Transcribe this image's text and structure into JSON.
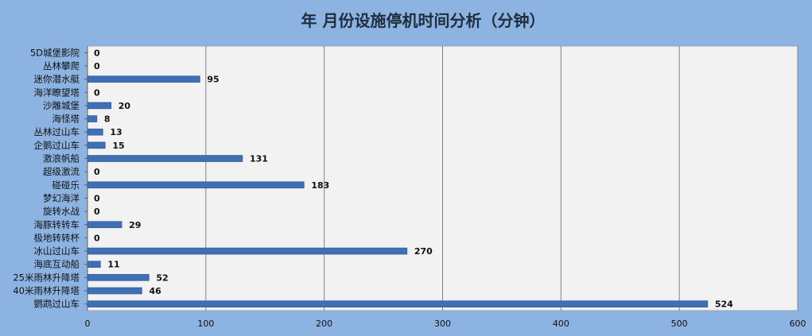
{
  "chart_data": {
    "type": "bar",
    "orientation": "horizontal",
    "title": "年  月份设施停机时间分析（分钟）",
    "xlabel": "",
    "ylabel": "",
    "xlim": [
      0,
      600
    ],
    "xticks": [
      0,
      100,
      200,
      300,
      400,
      500,
      600
    ],
    "grid": "vertical",
    "legend": "none",
    "categories": [
      "5D城堡影院",
      "丛林攀爬",
      "迷你潜水艇",
      "海洋瞭望塔",
      "沙雕城堡",
      "海怪塔",
      "丛林过山车",
      "企鹅过山车",
      "激浪帆船",
      "超级激流",
      "碰碰乐",
      "梦幻海洋",
      "旋转水战",
      "海豚转转车",
      "极地转转杯",
      "冰山过山车",
      "海底互动船",
      "25米雨林升降塔",
      "40米雨林升降塔",
      "鹦鹉过山车"
    ],
    "values": [
      0,
      0,
      95,
      0,
      20,
      8,
      13,
      15,
      131,
      0,
      183,
      0,
      0,
      29,
      0,
      270,
      11,
      52,
      46,
      524
    ],
    "colors": {
      "bar": "#3f6fb4",
      "bar_dark": "#2c5590",
      "plot_bg": "#f2f2f2",
      "page_bg": "#8db3e2",
      "grid": "#808080"
    }
  }
}
